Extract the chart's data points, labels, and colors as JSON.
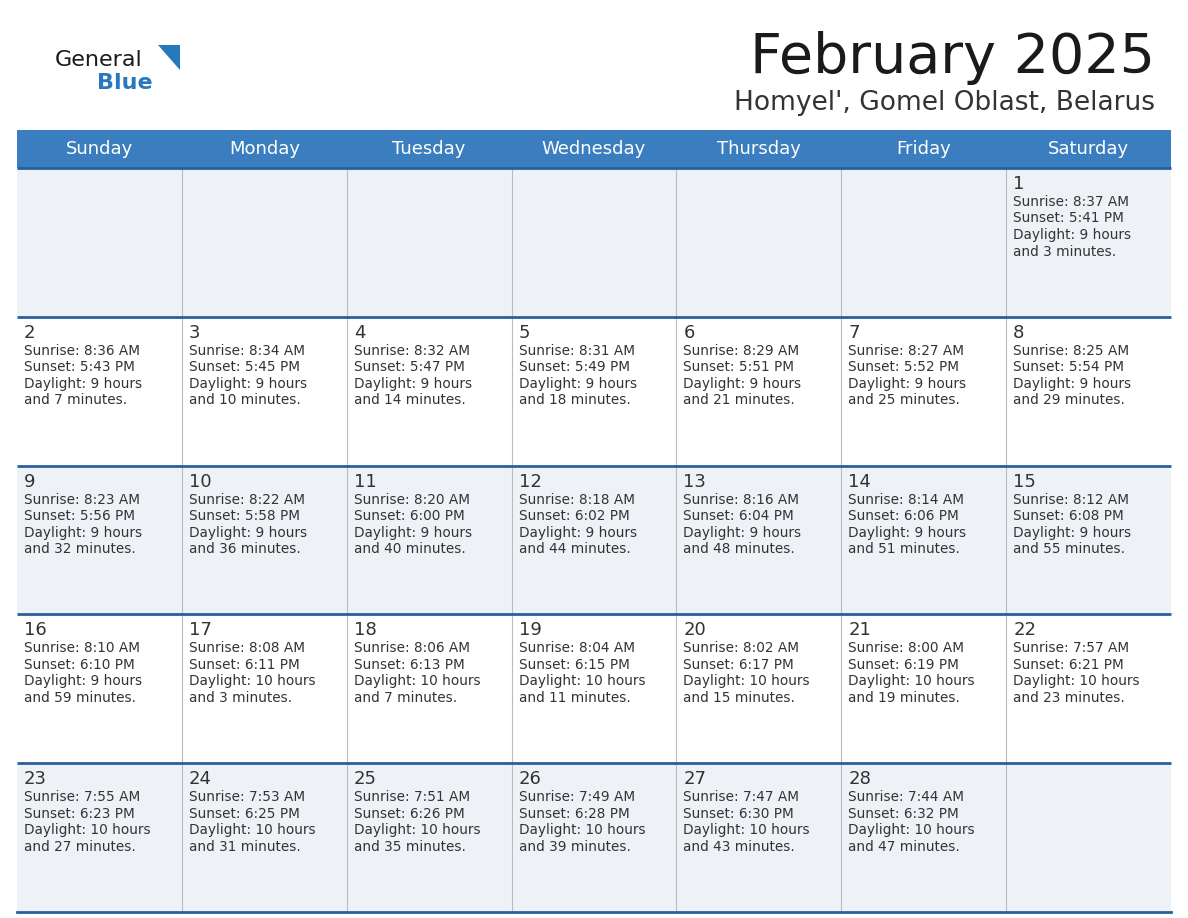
{
  "title": "February 2025",
  "subtitle": "Homyel', Gomel Oblast, Belarus",
  "days_of_week": [
    "Sunday",
    "Monday",
    "Tuesday",
    "Wednesday",
    "Thursday",
    "Friday",
    "Saturday"
  ],
  "header_bg": "#3a7ebf",
  "header_text": "#ffffff",
  "cell_bg_odd": "#eef2f7",
  "cell_bg_even": "#ffffff",
  "grid_line_color": "#2a5f9e",
  "day_num_color": "#333333",
  "day_data_color": "#333333",
  "title_color": "#1a1a1a",
  "subtitle_color": "#333333",
  "logo_general_color": "#1a1a1a",
  "logo_blue_color": "#2878be",
  "weeks": [
    [
      {
        "day": null
      },
      {
        "day": null
      },
      {
        "day": null
      },
      {
        "day": null
      },
      {
        "day": null
      },
      {
        "day": null
      },
      {
        "day": 1,
        "sunrise": "8:37 AM",
        "sunset": "5:41 PM",
        "daylight": "9 hours\nand 3 minutes."
      }
    ],
    [
      {
        "day": 2,
        "sunrise": "8:36 AM",
        "sunset": "5:43 PM",
        "daylight": "9 hours\nand 7 minutes."
      },
      {
        "day": 3,
        "sunrise": "8:34 AM",
        "sunset": "5:45 PM",
        "daylight": "9 hours\nand 10 minutes."
      },
      {
        "day": 4,
        "sunrise": "8:32 AM",
        "sunset": "5:47 PM",
        "daylight": "9 hours\nand 14 minutes."
      },
      {
        "day": 5,
        "sunrise": "8:31 AM",
        "sunset": "5:49 PM",
        "daylight": "9 hours\nand 18 minutes."
      },
      {
        "day": 6,
        "sunrise": "8:29 AM",
        "sunset": "5:51 PM",
        "daylight": "9 hours\nand 21 minutes."
      },
      {
        "day": 7,
        "sunrise": "8:27 AM",
        "sunset": "5:52 PM",
        "daylight": "9 hours\nand 25 minutes."
      },
      {
        "day": 8,
        "sunrise": "8:25 AM",
        "sunset": "5:54 PM",
        "daylight": "9 hours\nand 29 minutes."
      }
    ],
    [
      {
        "day": 9,
        "sunrise": "8:23 AM",
        "sunset": "5:56 PM",
        "daylight": "9 hours\nand 32 minutes."
      },
      {
        "day": 10,
        "sunrise": "8:22 AM",
        "sunset": "5:58 PM",
        "daylight": "9 hours\nand 36 minutes."
      },
      {
        "day": 11,
        "sunrise": "8:20 AM",
        "sunset": "6:00 PM",
        "daylight": "9 hours\nand 40 minutes."
      },
      {
        "day": 12,
        "sunrise": "8:18 AM",
        "sunset": "6:02 PM",
        "daylight": "9 hours\nand 44 minutes."
      },
      {
        "day": 13,
        "sunrise": "8:16 AM",
        "sunset": "6:04 PM",
        "daylight": "9 hours\nand 48 minutes."
      },
      {
        "day": 14,
        "sunrise": "8:14 AM",
        "sunset": "6:06 PM",
        "daylight": "9 hours\nand 51 minutes."
      },
      {
        "day": 15,
        "sunrise": "8:12 AM",
        "sunset": "6:08 PM",
        "daylight": "9 hours\nand 55 minutes."
      }
    ],
    [
      {
        "day": 16,
        "sunrise": "8:10 AM",
        "sunset": "6:10 PM",
        "daylight": "9 hours\nand 59 minutes."
      },
      {
        "day": 17,
        "sunrise": "8:08 AM",
        "sunset": "6:11 PM",
        "daylight": "10 hours\nand 3 minutes."
      },
      {
        "day": 18,
        "sunrise": "8:06 AM",
        "sunset": "6:13 PM",
        "daylight": "10 hours\nand 7 minutes."
      },
      {
        "day": 19,
        "sunrise": "8:04 AM",
        "sunset": "6:15 PM",
        "daylight": "10 hours\nand 11 minutes."
      },
      {
        "day": 20,
        "sunrise": "8:02 AM",
        "sunset": "6:17 PM",
        "daylight": "10 hours\nand 15 minutes."
      },
      {
        "day": 21,
        "sunrise": "8:00 AM",
        "sunset": "6:19 PM",
        "daylight": "10 hours\nand 19 minutes."
      },
      {
        "day": 22,
        "sunrise": "7:57 AM",
        "sunset": "6:21 PM",
        "daylight": "10 hours\nand 23 minutes."
      }
    ],
    [
      {
        "day": 23,
        "sunrise": "7:55 AM",
        "sunset": "6:23 PM",
        "daylight": "10 hours\nand 27 minutes."
      },
      {
        "day": 24,
        "sunrise": "7:53 AM",
        "sunset": "6:25 PM",
        "daylight": "10 hours\nand 31 minutes."
      },
      {
        "day": 25,
        "sunrise": "7:51 AM",
        "sunset": "6:26 PM",
        "daylight": "10 hours\nand 35 minutes."
      },
      {
        "day": 26,
        "sunrise": "7:49 AM",
        "sunset": "6:28 PM",
        "daylight": "10 hours\nand 39 minutes."
      },
      {
        "day": 27,
        "sunrise": "7:47 AM",
        "sunset": "6:30 PM",
        "daylight": "10 hours\nand 43 minutes."
      },
      {
        "day": 28,
        "sunrise": "7:44 AM",
        "sunset": "6:32 PM",
        "daylight": "10 hours\nand 47 minutes."
      },
      {
        "day": null
      }
    ]
  ]
}
